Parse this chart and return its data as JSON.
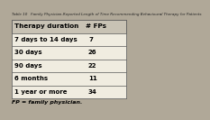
{
  "title": "Table 10   Family Physician-Reported Length of Time Recommending Behavioural Therapy for Patients",
  "col1_header": "Therapy duration",
  "col2_header": "# FPs",
  "rows": [
    [
      "7 days to 14 days",
      "7"
    ],
    [
      "30 days",
      "26"
    ],
    [
      "90 days",
      "22"
    ],
    [
      "6 months",
      "11"
    ],
    [
      "1 year or more",
      "34"
    ]
  ],
  "footnote": "FP = family physician.",
  "outer_bg": "#b0a898",
  "table_bg": "#f0ece0",
  "header_bg": "#c8c2b4",
  "border_color": "#555555",
  "title_color": "#222222",
  "text_color": "#000000",
  "title_fontsize": 3.0,
  "header_fontsize": 5.2,
  "row_fontsize": 5.0,
  "footnote_fontsize": 4.5
}
